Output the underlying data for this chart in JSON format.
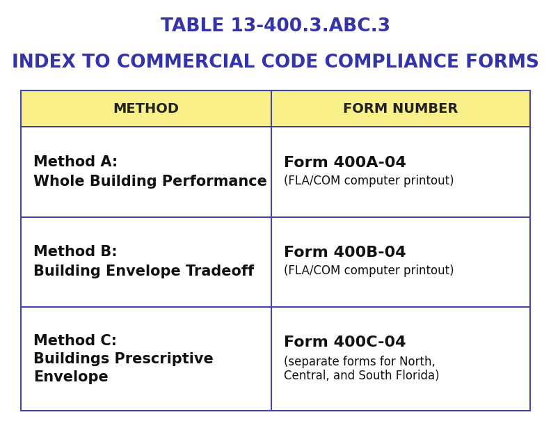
{
  "title_line1": "TABLE 13-400.3.ABC.3",
  "title_line2": "INDEX TO COMMERCIAL CODE COMPLIANCE FORMS",
  "title_color": "#3333aa",
  "title_fontsize": 19,
  "background_color": "#ffffff",
  "header_bg_color": "#faf08a",
  "header_text_color": "#222222",
  "header_col1": "METHOD",
  "header_col2": "FORM NUMBER",
  "header_fontsize": 14,
  "border_color": "#4444aa",
  "rows": [
    {
      "method_line1": "Method A:",
      "method_line2": "Whole Building Performance",
      "form_line1": "Form 400A-04",
      "form_line2": "(FLA/COM computer printout)"
    },
    {
      "method_line1": "Method B:",
      "method_line2": "Building Envelope Tradeoff",
      "form_line1": "Form 400B-04",
      "form_line2": "(FLA/COM computer printout)"
    },
    {
      "method_line1": "Method C:",
      "method_line2": "Buildings Prescriptive\nEnvelope",
      "form_line1": "Form 400C-04",
      "form_line2": "(separate forms for North,\nCentral, and South Florida)"
    }
  ],
  "method_fontsize": 15,
  "form_fontsize_large": 16,
  "form_fontsize_small": 12,
  "cell_text_color": "#111111",
  "figwidth": 7.92,
  "figheight": 6.12,
  "dpi": 100
}
